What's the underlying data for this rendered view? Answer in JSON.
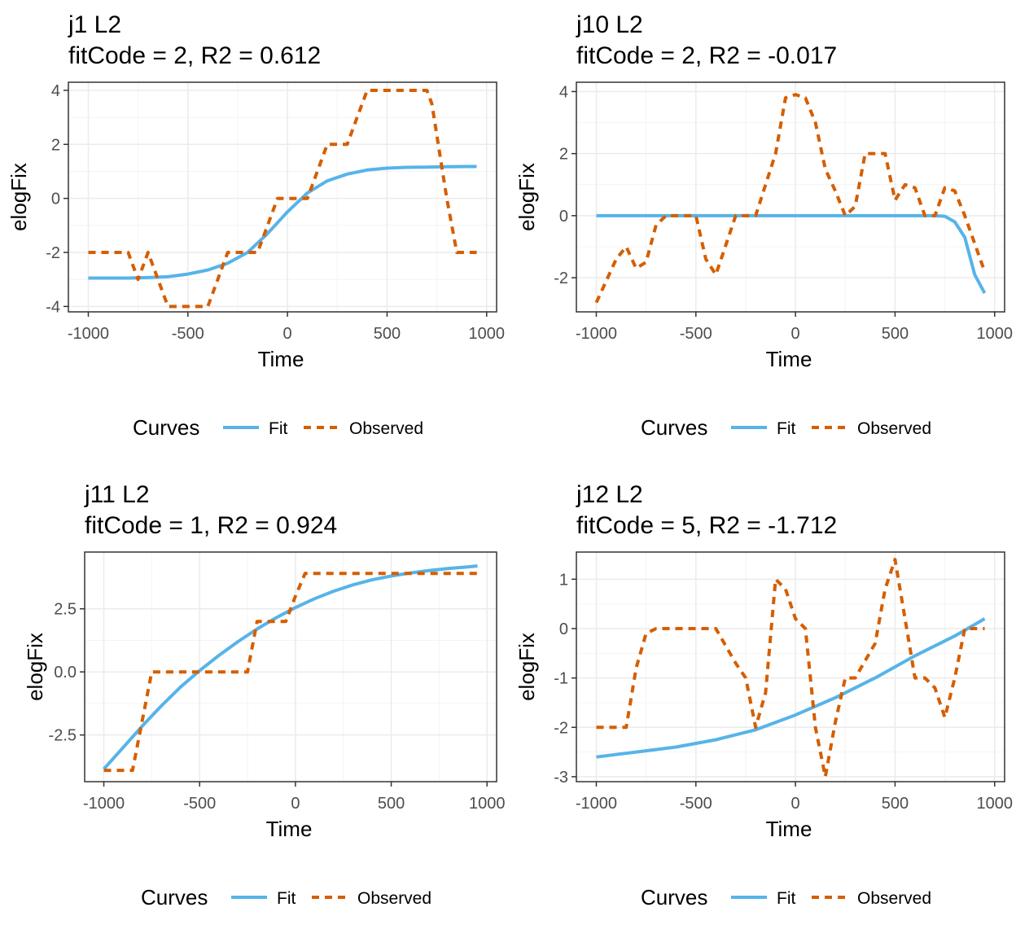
{
  "colors": {
    "fit": "#56B4E9",
    "observed": "#D55E00",
    "grid_major": "#EBEBEB",
    "grid_minor": "#F4F4F4",
    "axis_text": "#4D4D4D",
    "panel_border": "#333333"
  },
  "legend": {
    "title": "Curves",
    "fit_label": "Fit",
    "observed_label": "Observed"
  },
  "chart_data": [
    {
      "type": "line",
      "title": "j1 L2",
      "subtitle": "fitCode = 2, R2 = 0.612",
      "xlabel": "Time",
      "ylabel": "elogFix",
      "xlim": [
        -1100,
        1050
      ],
      "ylim": [
        -4.2,
        4.3
      ],
      "xticks": [
        -1000,
        -500,
        0,
        500,
        1000
      ],
      "xtick_labels": [
        "-1000",
        "-500",
        "0",
        "500",
        "1000"
      ],
      "yticks": [
        -4,
        -2,
        0,
        2,
        4
      ],
      "ytick_labels": [
        "-4",
        "-2",
        "0",
        "2",
        "4"
      ],
      "legend_position": "bottom",
      "series": [
        {
          "name": "Fit",
          "x": [
            -1000,
            -900,
            -800,
            -700,
            -600,
            -500,
            -400,
            -300,
            -200,
            -100,
            0,
            100,
            200,
            300,
            400,
            500,
            600,
            700,
            800,
            900,
            950
          ],
          "y": [
            -2.95,
            -2.95,
            -2.95,
            -2.93,
            -2.9,
            -2.8,
            -2.65,
            -2.4,
            -2.0,
            -1.3,
            -0.5,
            0.2,
            0.65,
            0.9,
            1.05,
            1.12,
            1.15,
            1.16,
            1.17,
            1.18,
            1.18
          ]
        },
        {
          "name": "Observed",
          "x": [
            -1000,
            -850,
            -800,
            -750,
            -700,
            -600,
            -450,
            -400,
            -350,
            -300,
            -200,
            -150,
            -100,
            -50,
            0,
            100,
            150,
            200,
            250,
            300,
            350,
            400,
            500,
            600,
            700,
            725,
            800,
            850,
            950
          ],
          "y": [
            -2,
            -2,
            -2,
            -3,
            -2,
            -4,
            -4,
            -4,
            -3,
            -2,
            -2,
            -2,
            -1,
            0,
            0,
            0,
            1,
            2,
            2,
            2,
            3,
            4,
            4,
            4,
            4,
            3.5,
            0,
            -2,
            -2
          ]
        }
      ]
    },
    {
      "type": "line",
      "title": "j10 L2",
      "subtitle": "fitCode = 2, R2 = -0.017",
      "xlabel": "Time",
      "ylabel": "elogFix",
      "xlim": [
        -1100,
        1050
      ],
      "ylim": [
        -3.1,
        4.3
      ],
      "xticks": [
        -1000,
        -500,
        0,
        500,
        1000
      ],
      "xtick_labels": [
        "-1000",
        "-500",
        "0",
        "500",
        "1000"
      ],
      "yticks": [
        -2,
        0,
        2,
        4
      ],
      "ytick_labels": [
        "-2",
        "0",
        "2",
        "4"
      ],
      "legend_position": "bottom",
      "series": [
        {
          "name": "Fit",
          "x": [
            -1000,
            -500,
            0,
            500,
            700,
            750,
            800,
            850,
            900,
            950
          ],
          "y": [
            0,
            0,
            0,
            0,
            0,
            -0.02,
            -0.2,
            -0.7,
            -1.9,
            -2.5
          ]
        },
        {
          "name": "Observed",
          "x": [
            -1000,
            -900,
            -850,
            -800,
            -750,
            -700,
            -650,
            -550,
            -500,
            -450,
            -400,
            -300,
            -200,
            -150,
            -100,
            -50,
            0,
            50,
            100,
            150,
            200,
            250,
            300,
            350,
            400,
            450,
            500,
            550,
            600,
            650,
            700,
            750,
            800,
            850,
            950
          ],
          "y": [
            -2.8,
            -1.4,
            -1,
            -1.7,
            -1.5,
            -0.3,
            0,
            0,
            0,
            -1.4,
            -1.9,
            0,
            0,
            1,
            2,
            3.8,
            3.9,
            3.8,
            3,
            1.5,
            0.8,
            0,
            0.3,
            2,
            2,
            2,
            0.5,
            1,
            0.9,
            0,
            0,
            0.9,
            0.8,
            0,
            -1.8
          ]
        }
      ]
    },
    {
      "type": "line",
      "title": "j11 L2",
      "subtitle": "fitCode = 1, R2 = 0.924",
      "xlabel": "Time",
      "ylabel": "elogFix",
      "xlim": [
        -1100,
        1050
      ],
      "ylim": [
        -4.35,
        4.75
      ],
      "xticks": [
        -1000,
        -500,
        0,
        500,
        1000
      ],
      "xtick_labels": [
        "-1000",
        "-500",
        "0",
        "500",
        "1000"
      ],
      "yticks": [
        -2.5,
        0,
        2.5
      ],
      "ytick_labels": [
        "-2.5",
        "0.0",
        "2.5"
      ],
      "legend_position": "bottom",
      "series": [
        {
          "name": "Fit",
          "x": [
            -1000,
            -900,
            -800,
            -700,
            -600,
            -500,
            -400,
            -300,
            -200,
            -100,
            0,
            100,
            200,
            300,
            400,
            500,
            600,
            700,
            800,
            900,
            950
          ],
          "y": [
            -3.85,
            -3.0,
            -2.15,
            -1.35,
            -0.6,
            0.05,
            0.65,
            1.2,
            1.7,
            2.15,
            2.55,
            2.9,
            3.2,
            3.45,
            3.65,
            3.8,
            3.92,
            4.02,
            4.1,
            4.16,
            4.2
          ]
        },
        {
          "name": "Observed",
          "x": [
            -1000,
            -850,
            -750,
            -700,
            -250,
            -200,
            -150,
            -100,
            -50,
            0,
            50,
            100,
            500,
            950
          ],
          "y": [
            -3.9,
            -3.9,
            0,
            0,
            0,
            2,
            2,
            2,
            2,
            3,
            3.9,
            3.9,
            3.9,
            3.9
          ]
        }
      ]
    },
    {
      "type": "line",
      "title": "j12 L2",
      "subtitle": "fitCode = 5, R2 = -1.712",
      "xlabel": "Time",
      "ylabel": "elogFix",
      "xlim": [
        -1100,
        1050
      ],
      "ylim": [
        -3.1,
        1.55
      ],
      "xticks": [
        -1000,
        -500,
        0,
        500,
        1000
      ],
      "xtick_labels": [
        "-1000",
        "-500",
        "0",
        "500",
        "1000"
      ],
      "yticks": [
        -3,
        -2,
        -1,
        0,
        1
      ],
      "ytick_labels": [
        "-3",
        "-2",
        "-1",
        "0",
        "1"
      ],
      "legend_position": "bottom",
      "series": [
        {
          "name": "Fit",
          "x": [
            -1000,
            -800,
            -600,
            -400,
            -200,
            0,
            200,
            400,
            600,
            800,
            950
          ],
          "y": [
            -2.6,
            -2.5,
            -2.4,
            -2.25,
            -2.05,
            -1.75,
            -1.4,
            -1.0,
            -0.55,
            -0.15,
            0.2
          ]
        },
        {
          "name": "Observed",
          "x": [
            -1000,
            -850,
            -800,
            -750,
            -700,
            -400,
            -300,
            -250,
            -200,
            -150,
            -100,
            -50,
            0,
            50,
            100,
            150,
            200,
            250,
            300,
            400,
            450,
            500,
            550,
            600,
            650,
            700,
            750,
            800,
            850,
            900,
            950
          ],
          "y": [
            -2,
            -2,
            -0.8,
            -0.1,
            0,
            0,
            -0.7,
            -1,
            -2,
            -1.3,
            1,
            0.8,
            0.2,
            0,
            -2,
            -3,
            -1.9,
            -1,
            -1,
            -0.3,
            0.8,
            1.4,
            0.2,
            -1,
            -1,
            -1.2,
            -1.8,
            -1,
            0,
            0,
            0
          ]
        }
      ]
    }
  ]
}
